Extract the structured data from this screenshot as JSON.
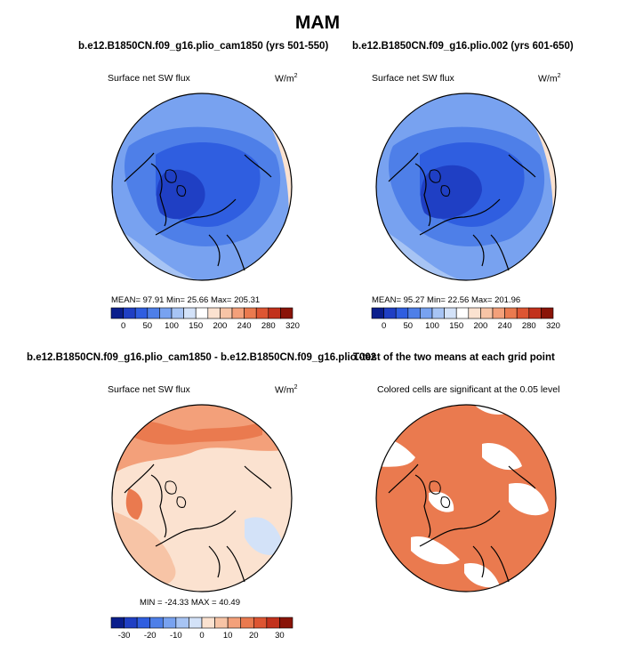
{
  "title": "MAM",
  "panels": [
    {
      "title": "b.e12.B1850CN.f09_g16.plio_cam1850 (yrs 501-550)",
      "subtitle": "Surface net SW flux",
      "units": "W/m",
      "units_sup": "2",
      "stats": "MEAN=  97.91  Min=  25.66  Max= 205.31"
    },
    {
      "title": "b.e12.B1850CN.f09_g16.plio.002 (yrs 601-650)",
      "subtitle": "Surface net SW flux",
      "units": "W/m",
      "units_sup": "2",
      "stats": "MEAN=  95.27  Min=  22.56  Max= 201.96"
    },
    {
      "title": "b.e12.B1850CN.f09_g16.plio_cam1850 - b.e12.B1850CN.f09_g16.plio.002",
      "subtitle": "Surface net SW flux",
      "units": "W/m",
      "units_sup": "2",
      "stats": "MIN = -24.33  MAX =  40.49"
    },
    {
      "title": "T-test of the two means at each grid point",
      "subtitle": "Colored cells are significant at the 0.05 level"
    }
  ],
  "colorbars": {
    "abs": {
      "colors": [
        "#0a1e8c",
        "#1f3fc4",
        "#2f5ee0",
        "#4e7fe8",
        "#78a2f0",
        "#a7c4f4",
        "#d3e2f8",
        "#ffffff",
        "#fbe2d0",
        "#f7c4a6",
        "#f3a07a",
        "#ea7a4f",
        "#dd5532",
        "#c2311c",
        "#8a1408"
      ],
      "tick_labels": [
        "0",
        "50",
        "100",
        "150",
        "200",
        "240",
        "280",
        "320"
      ]
    },
    "diff": {
      "colors": [
        "#0a1e8c",
        "#1f3fc4",
        "#2f5ee0",
        "#4e7fe8",
        "#78a2f0",
        "#a7c4f4",
        "#d3e2f8",
        "#fbe2d0",
        "#f7c4a6",
        "#f3a07a",
        "#ea7a4f",
        "#dd5532",
        "#c2311c",
        "#8a1408"
      ],
      "tick_labels": [
        "-30",
        "-20",
        "-10",
        "0",
        "10",
        "20",
        "30"
      ]
    }
  },
  "chart_data": [
    {
      "type": "heatmap",
      "projection": "north-polar-stereographic",
      "variable": "Surface net SW flux",
      "units": "W/m2",
      "mean": 97.91,
      "min": 25.66,
      "max": 205.31,
      "levels": [
        0,
        25,
        50,
        75,
        100,
        125,
        150,
        175,
        200,
        220,
        240,
        260,
        280,
        300,
        320
      ]
    },
    {
      "type": "heatmap",
      "projection": "north-polar-stereographic",
      "variable": "Surface net SW flux",
      "units": "W/m2",
      "mean": 95.27,
      "min": 22.56,
      "max": 201.96,
      "levels": [
        0,
        25,
        50,
        75,
        100,
        125,
        150,
        175,
        200,
        220,
        240,
        260,
        280,
        300,
        320
      ]
    },
    {
      "type": "heatmap",
      "projection": "north-polar-stereographic",
      "variable": "Surface net SW flux difference",
      "units": "W/m2",
      "min": -24.33,
      "max": 40.49,
      "levels": [
        -35,
        -30,
        -25,
        -20,
        -15,
        -10,
        -5,
        0,
        5,
        10,
        15,
        20,
        25,
        30,
        35
      ]
    },
    {
      "type": "heatmap",
      "projection": "north-polar-stereographic",
      "variable": "significance mask (p<0.05)"
    }
  ]
}
